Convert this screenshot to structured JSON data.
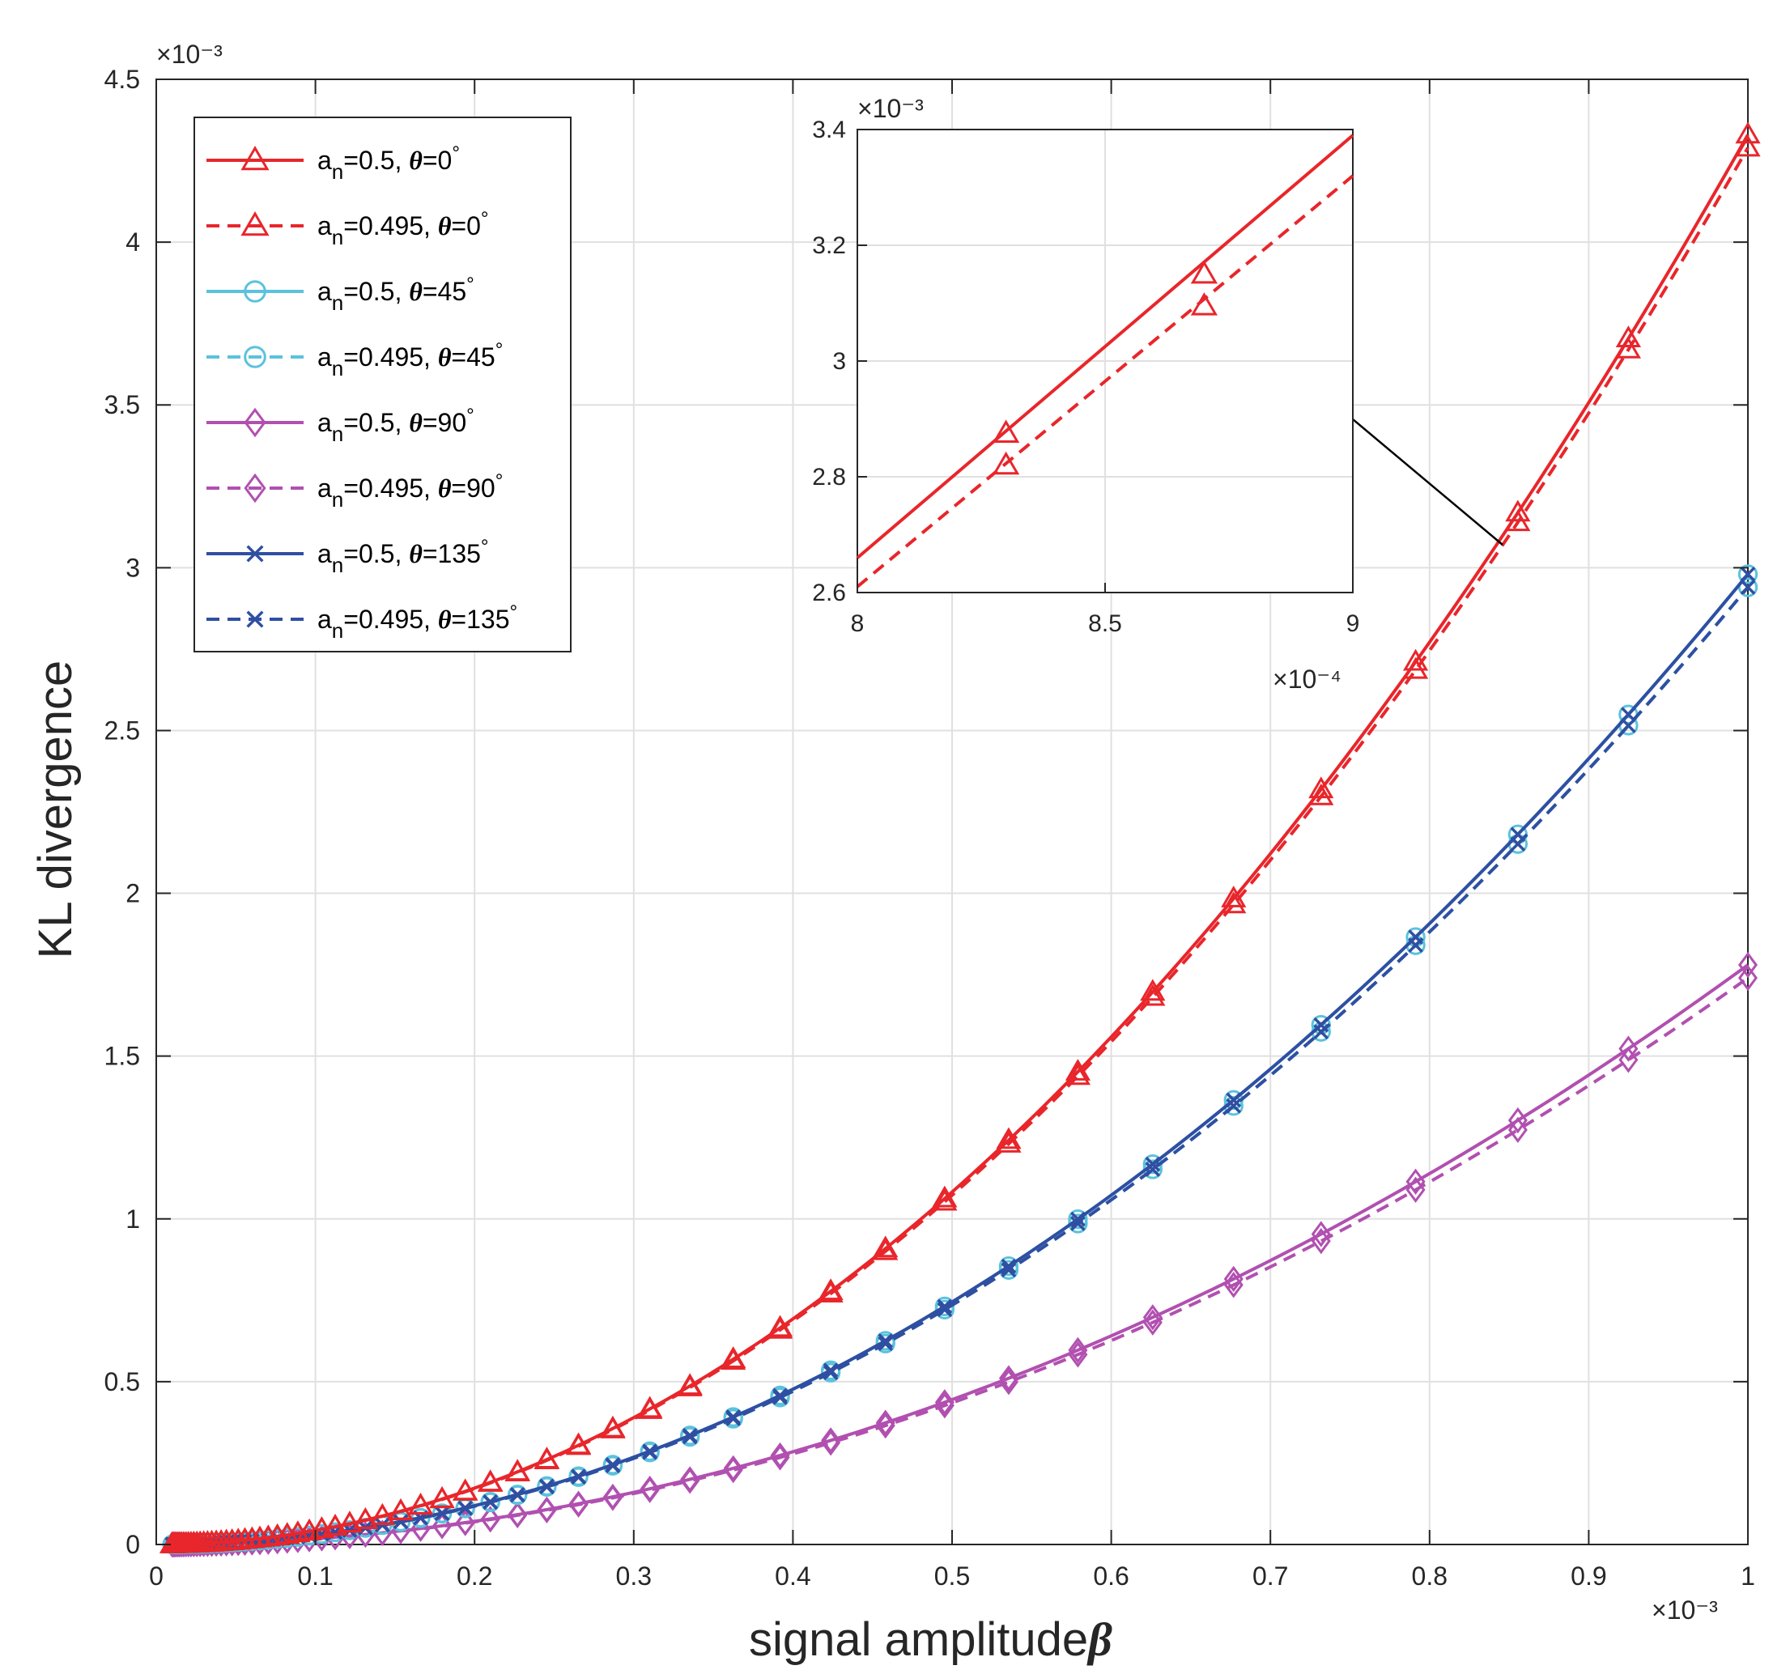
{
  "chart_data": {
    "type": "line",
    "xlabel": "signal amplitude",
    "xlabel_symbol": "β",
    "ylabel": "KL divergence",
    "x_multiplier": "×10⁻³",
    "y_multiplier": "×10⁻³",
    "xlim": [
      0,
      1
    ],
    "ylim": [
      0,
      4.5
    ],
    "grid": true,
    "legend_position": "top-left",
    "x_ticks": [
      "0",
      "0.1",
      "0.2",
      "0.3",
      "0.4",
      "0.5",
      "0.6",
      "0.7",
      "0.8",
      "0.9",
      "1"
    ],
    "y_ticks": [
      "0",
      "0.5",
      "1",
      "1.5",
      "2",
      "2.5",
      "3",
      "3.5",
      "4",
      "4.5"
    ],
    "series": [
      {
        "name": "a_n=0.5, θ=0°",
        "an": "0.5",
        "theta": "0",
        "color": "#e8262b",
        "dash": false,
        "marker": "triangle",
        "coef": 4.33
      },
      {
        "name": "a_n=0.495, θ=0°",
        "an": "0.495",
        "theta": "0",
        "color": "#e8262b",
        "dash": true,
        "marker": "triangle",
        "coef": 4.29
      },
      {
        "name": "a_n=0.5, θ=45°",
        "an": "0.5",
        "theta": "45",
        "color": "#5bc2dd",
        "dash": false,
        "marker": "circle",
        "coef": 2.98
      },
      {
        "name": "a_n=0.495, θ=45°",
        "an": "0.495",
        "theta": "45",
        "color": "#5bc2dd",
        "dash": true,
        "marker": "circle",
        "coef": 2.94
      },
      {
        "name": "a_n=0.5, θ=90°",
        "an": "0.5",
        "theta": "90",
        "color": "#b150b0",
        "dash": false,
        "marker": "diamond",
        "coef": 1.78
      },
      {
        "name": "a_n=0.495, θ=90°",
        "an": "0.495",
        "theta": "90",
        "color": "#b150b0",
        "dash": true,
        "marker": "diamond",
        "coef": 1.74
      },
      {
        "name": "a_n=0.5, θ=135°",
        "an": "0.5",
        "theta": "135",
        "color": "#2f4fa2",
        "dash": false,
        "marker": "x",
        "coef": 2.98
      },
      {
        "name": "a_n=0.495, θ=135°",
        "an": "0.495",
        "theta": "135",
        "color": "#2f4fa2",
        "dash": true,
        "marker": "x",
        "coef": 2.94
      }
    ],
    "inset": {
      "xlim": [
        8,
        9
      ],
      "ylim": [
        2.6,
        3.4
      ],
      "x_multiplier": "×10⁻⁴",
      "y_multiplier": "×10⁻³",
      "x_ticks": [
        "8",
        "8.5",
        "9"
      ],
      "y_ticks": [
        "2.6",
        "2.8",
        "3",
        "3.2",
        "3.4"
      ],
      "lines": [
        {
          "name": "a_n=0.5, θ=0°",
          "color": "#e8262b",
          "dash": false,
          "x": [
            8,
            9
          ],
          "y": [
            2.66,
            3.39
          ],
          "markers_x": [
            8.3,
            8.7
          ],
          "markers_y": [
            2.875,
            3.15
          ]
        },
        {
          "name": "a_n=0.495, θ=0°",
          "color": "#e8262b",
          "dash": true,
          "x": [
            8,
            9
          ],
          "y": [
            2.61,
            3.32
          ],
          "markers_x": [
            8.3,
            8.7
          ],
          "markers_y": [
            2.82,
            3.095
          ]
        }
      ],
      "arrow_target": "inset"
    }
  }
}
